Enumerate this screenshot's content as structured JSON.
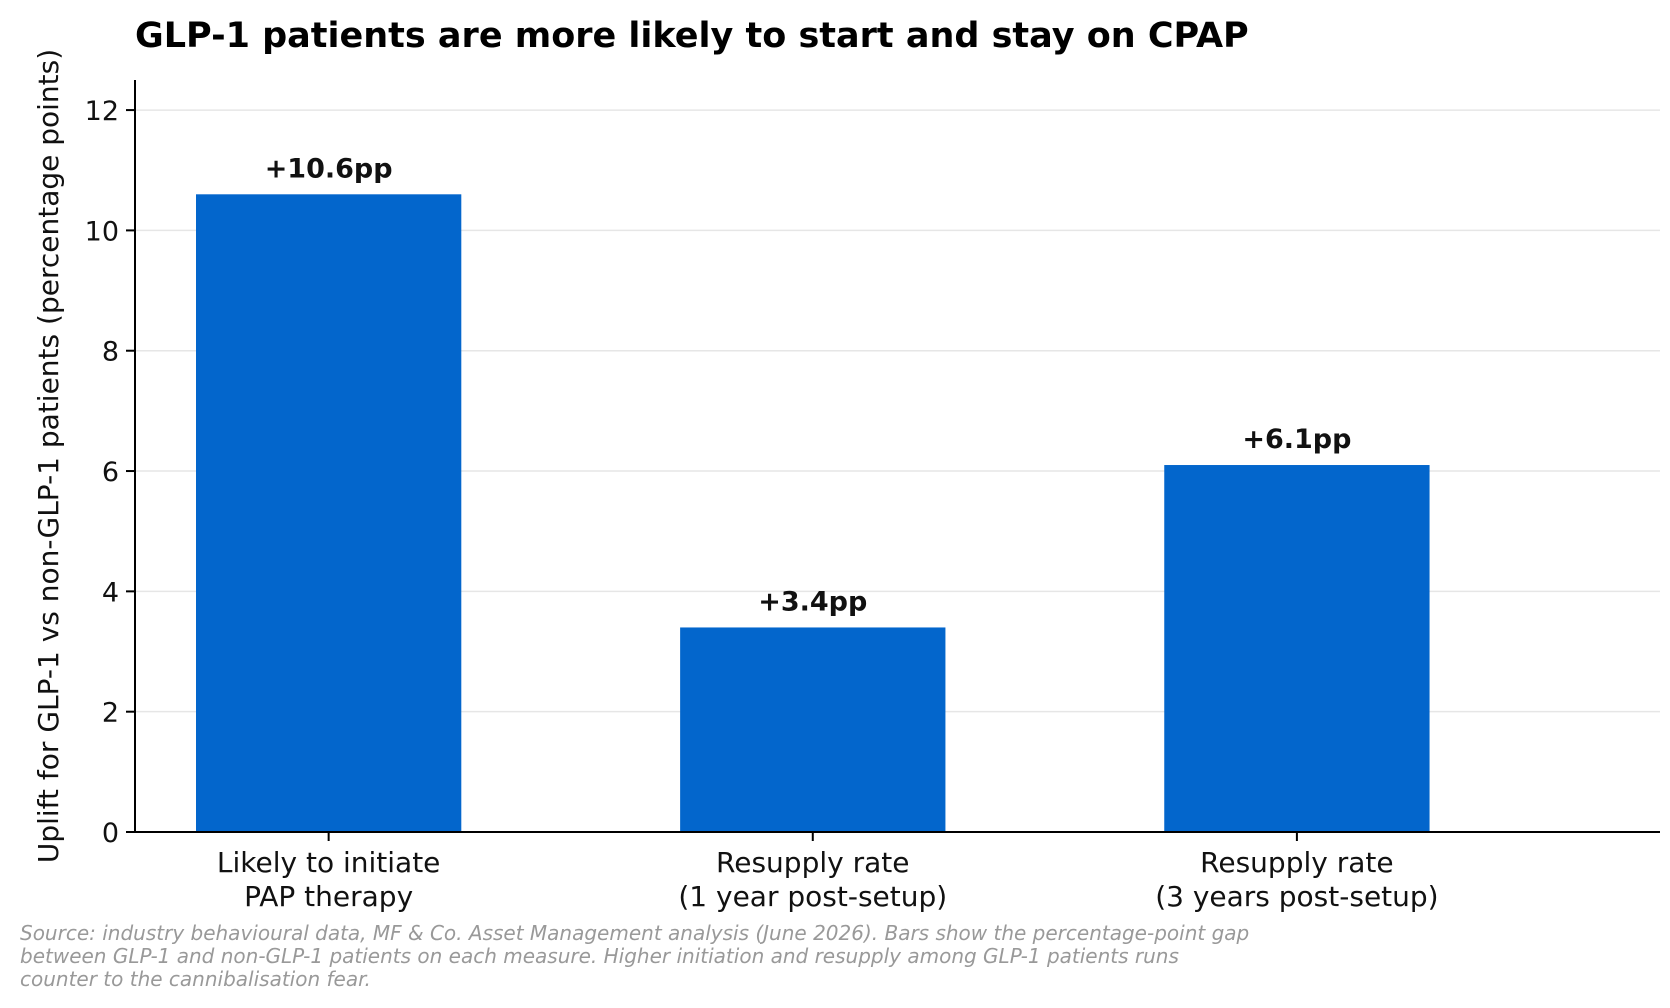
{
  "chart_data": {
    "type": "bar",
    "title": "GLP-1 patients are more likely to start and stay on CPAP",
    "ylabel": "Uplift for GLP-1 vs non-GLP-1 patients (percentage points)",
    "xlabel": "",
    "categories": [
      [
        "Likely to initiate",
        "PAP therapy"
      ],
      [
        "Resupply rate",
        "(1 year post-setup)"
      ],
      [
        "Resupply rate",
        "(3 years post-setup)"
      ]
    ],
    "values": [
      10.6,
      3.4,
      6.1
    ],
    "data_labels": [
      "+10.6pp",
      "+3.4pp",
      "+6.1pp"
    ],
    "ylim": [
      0,
      12.5
    ],
    "yticks": [
      0,
      2,
      4,
      6,
      8,
      10,
      12
    ],
    "grid": "horizontal",
    "legend": "none",
    "bar_color": "#0366cc"
  },
  "source_note": "Source: industry behavioural data, MF & Co. Asset Management analysis (June 2026). Bars show the percentage-point gap between GLP-1 and non-GLP-1 patients on each measure. Higher initiation and resupply among GLP-1 patients runs counter to the cannibalisation fear."
}
